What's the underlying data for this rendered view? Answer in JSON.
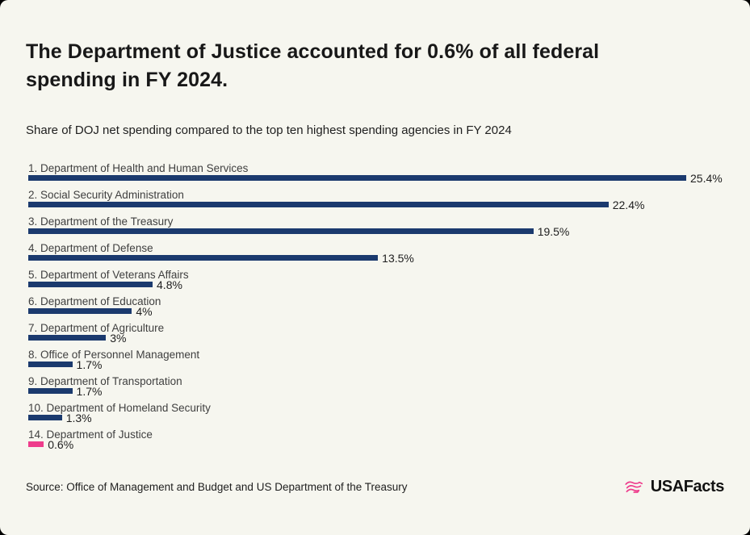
{
  "title": "The Department of Justice accounted for 0.6% of all federal spending in FY 2024.",
  "subtitle": "Share of DOJ net spending compared to the top ten highest spending agencies in FY 2024",
  "source": "Source: Office of Management and Budget and US Department of the Treasury",
  "logo": {
    "text": "USAFacts",
    "icon": "usafacts-flag-icon"
  },
  "colors": {
    "background": "#f6f6ef",
    "bar": "#1b3a6e",
    "highlight": "#ee3c8c",
    "title_text": "#181818",
    "label_text": "#3f3f3f",
    "value_text": "#1e1e1e"
  },
  "chart_data": {
    "type": "bar",
    "orientation": "horizontal",
    "title": "The Department of Justice accounted for 0.6% of all federal spending in FY 2024.",
    "subtitle": "Share of DOJ net spending compared to the top ten highest spending agencies in FY 2024",
    "unit": "percent of federal spending",
    "xlim": [
      0,
      25.4
    ],
    "grid": false,
    "legend": false,
    "categories": [
      "1. Department of Health and Human Services",
      "2. Social Security Administration",
      "3. Department of the Treasury",
      "4. Department of Defense",
      "5. Department of Veterans Affairs",
      "6. Department of Education",
      "7. Department of Agriculture",
      "8. Office of Personnel Management",
      "9. Department of Transportation",
      "10. Department of Homeland Security",
      "14. Department of Justice"
    ],
    "values": [
      25.4,
      22.4,
      19.5,
      13.5,
      4.8,
      4,
      3,
      1.7,
      1.7,
      1.3,
      0.6
    ],
    "value_labels": [
      "25.4%",
      "22.4%",
      "19.5%",
      "13.5%",
      "4.8%",
      "4%",
      "3%",
      "1.7%",
      "1.7%",
      "1.3%",
      "0.6%"
    ],
    "highlight_index": 10
  }
}
